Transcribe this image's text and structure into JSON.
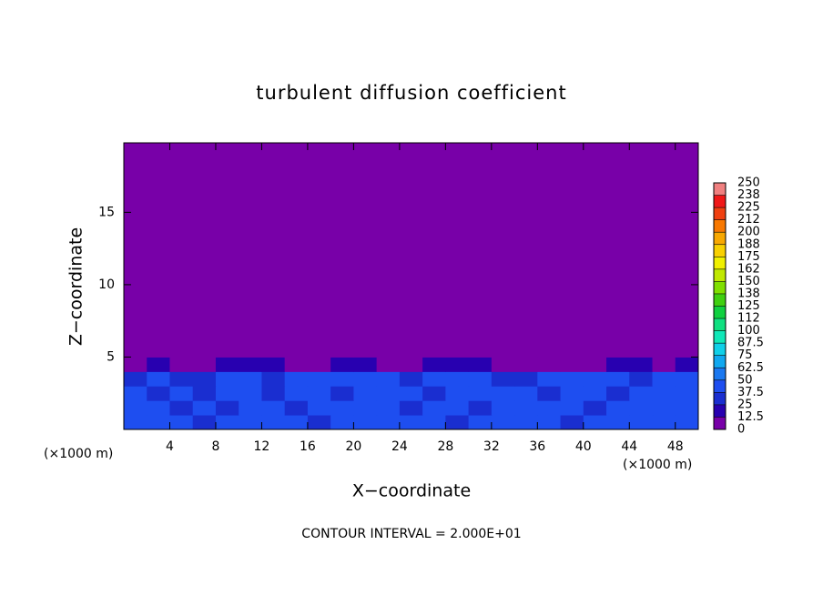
{
  "chart_data": {
    "type": "heatmap",
    "title": "turbulent diffusion coefficient",
    "x_label": "X−coordinate",
    "y_label": "Z−coordinate",
    "y_unit": "(×1000 m)",
    "x_unit": "(×1000 m)",
    "annotation": "CONTOUR INTERVAL = 2.000E+01",
    "xlim": [
      0,
      50
    ],
    "ylim": [
      0,
      19.8
    ],
    "xticks": [
      4,
      8,
      12,
      16,
      20,
      24,
      28,
      32,
      36,
      40,
      44,
      48
    ],
    "yticks": [
      5,
      10,
      15
    ],
    "xbins": [
      0,
      2,
      4,
      6,
      8,
      10,
      12,
      14,
      16,
      18,
      20,
      22,
      24,
      26,
      28,
      30,
      32,
      34,
      36,
      38,
      40,
      42,
      44,
      46,
      48,
      50
    ],
    "ybins": [
      0,
      1,
      2,
      3,
      4,
      5,
      19.8
    ],
    "z": [
      [
        40,
        38,
        42,
        35,
        40,
        45,
        38,
        42,
        36,
        40,
        44,
        38,
        40,
        42,
        36,
        40,
        38,
        44,
        40,
        36,
        42,
        38,
        40,
        44,
        38
      ],
      [
        38,
        42,
        30,
        45,
        36,
        40,
        44,
        32,
        42,
        38,
        40,
        46,
        36,
        42,
        40,
        34,
        44,
        38,
        42,
        40,
        36,
        44,
        38,
        40,
        42
      ],
      [
        42,
        36,
        40,
        34,
        44,
        38,
        36,
        44,
        40,
        30,
        44,
        38,
        42,
        36,
        44,
        40,
        38,
        42,
        36,
        44,
        40,
        34,
        42,
        38,
        44
      ],
      [
        36,
        40,
        34,
        30,
        38,
        44,
        36,
        42,
        38,
        40,
        42,
        40,
        34,
        38,
        42,
        40,
        36,
        32,
        38,
        42,
        40,
        44,
        36,
        40,
        42
      ],
      [
        10,
        20,
        10,
        5,
        20,
        20,
        20,
        5,
        10,
        20,
        20,
        10,
        5,
        20,
        20,
        20,
        10,
        5,
        5,
        10,
        5,
        20,
        20,
        10,
        20
      ],
      [
        0,
        0,
        0,
        0,
        0,
        0,
        0,
        0,
        0,
        0,
        0,
        0,
        0,
        0,
        0,
        0,
        0,
        0,
        0,
        0,
        0,
        0,
        0,
        0,
        0
      ]
    ],
    "colorbar_lim": [
      0,
      250
    ],
    "colorbar_ticks": [
      0,
      12.5,
      25,
      37.5,
      50,
      62.5,
      75,
      87.5,
      100,
      {
        "value": 112.5,
        "label": "112"
      },
      125,
      {
        "value": 137.5,
        "label": "138"
      },
      150,
      {
        "value": 162.5,
        "label": "162"
      },
      175,
      {
        "value": 187.5,
        "label": "188"
      },
      200,
      {
        "value": 212.5,
        "label": "212"
      },
      225,
      {
        "value": 237.5,
        "label": "238"
      },
      250
    ],
    "colors": [
      "#7800a8",
      "#2800b0",
      "#1a2ed0",
      "#1e4ef0",
      "#1a78f0",
      "#10a8f0",
      "#10d0e8",
      "#10e8b8",
      "#10e080",
      "#10d040",
      "#40d010",
      "#80e000",
      "#c0e800",
      "#f0f000",
      "#f8d000",
      "#f8a800",
      "#f87800",
      "#f04010",
      "#f01818",
      "#f08080"
    ]
  }
}
